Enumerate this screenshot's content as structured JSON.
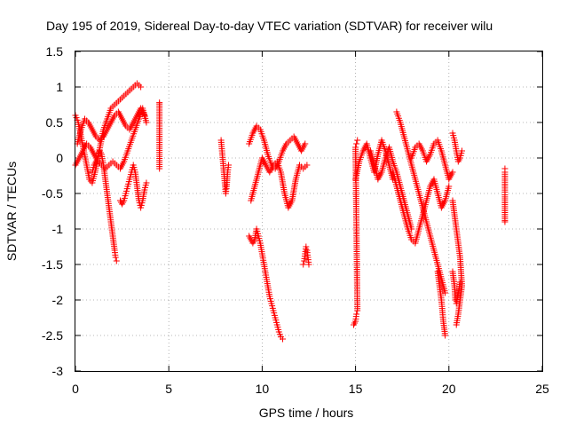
{
  "chart_data": {
    "type": "scatter",
    "title": "Day 195 of 2019, Sidereal Day-to-day VTEC variation (SDTVAR) for receiver wilu",
    "xlabel": "GPS time / hours",
    "ylabel": "SDTVAR / TECUs",
    "xlim": [
      0,
      25
    ],
    "ylim": [
      -3,
      1.5
    ],
    "xticks": [
      0,
      5,
      10,
      15,
      20,
      25
    ],
    "yticks": [
      -3,
      -2.5,
      -2,
      -1.5,
      -1,
      -0.5,
      0,
      0.5,
      1,
      1.5
    ],
    "xtick_labels": [
      "0",
      "5",
      "10",
      "15",
      "20",
      "25"
    ],
    "ytick_labels": [
      "-3",
      "-2.5",
      "-2",
      "-1.5",
      "-1",
      "-0.5",
      "0",
      "0.5",
      "1",
      "1.5"
    ],
    "grid": true,
    "marker": "+",
    "color": "#ff0000",
    "series": [
      {
        "name": "s1",
        "x": [
          0.0,
          0.15,
          0.3,
          0.45,
          0.6,
          0.75,
          0.9,
          1.05,
          1.2,
          1.35,
          1.5,
          1.7,
          1.9,
          2.1,
          2.3,
          2.5,
          2.7,
          2.9,
          3.1,
          3.3,
          3.5
        ],
        "y": [
          0.6,
          0.5,
          0.3,
          0.1,
          -0.1,
          -0.3,
          -0.35,
          -0.2,
          0.0,
          0.2,
          0.4,
          0.55,
          0.7,
          0.75,
          0.8,
          0.85,
          0.9,
          0.95,
          1.0,
          1.05,
          1.0
        ]
      },
      {
        "name": "s2",
        "x": [
          0.1,
          0.3,
          0.5,
          0.7,
          0.9,
          1.1,
          1.3,
          1.5,
          1.7,
          1.9,
          2.1,
          2.3,
          2.5,
          2.7,
          2.9,
          3.1,
          3.3,
          3.5,
          3.7
        ],
        "y": [
          0.2,
          0.4,
          0.55,
          0.5,
          0.4,
          0.3,
          0.25,
          0.3,
          0.4,
          0.5,
          0.6,
          0.65,
          0.55,
          0.45,
          0.4,
          0.5,
          0.6,
          0.7,
          0.6
        ]
      },
      {
        "name": "s3",
        "x": [
          0.0,
          0.2,
          0.4,
          0.6,
          0.8,
          1.0,
          1.2,
          1.4,
          1.6,
          1.8,
          2.0,
          2.2,
          2.4,
          2.6,
          2.8,
          3.0,
          3.2,
          3.4,
          3.6,
          3.8
        ],
        "y": [
          -0.1,
          0.0,
          0.1,
          0.2,
          0.15,
          0.05,
          -0.05,
          -0.1,
          -0.15,
          -0.1,
          -0.05,
          -0.1,
          -0.15,
          -0.05,
          0.1,
          0.25,
          0.4,
          0.55,
          0.7,
          0.5
        ]
      },
      {
        "name": "s4",
        "x": [
          0.9,
          1.0,
          1.1,
          1.2,
          1.3,
          1.4,
          1.5,
          1.6,
          1.7,
          1.8,
          1.9,
          2.0,
          2.1,
          2.15,
          2.2
        ],
        "y": [
          -0.2,
          -0.1,
          -0.05,
          0.0,
          0.1,
          0.05,
          -0.1,
          -0.3,
          -0.5,
          -0.7,
          -0.9,
          -1.1,
          -1.3,
          -1.4,
          -1.45
        ]
      },
      {
        "name": "s5",
        "x": [
          2.4,
          2.5,
          2.6,
          2.7,
          2.8,
          2.9,
          3.0,
          3.1,
          3.2,
          3.3,
          3.4,
          3.5,
          3.6,
          3.7,
          3.8
        ],
        "y": [
          -0.6,
          -0.65,
          -0.6,
          -0.5,
          -0.4,
          -0.3,
          -0.2,
          -0.1,
          -0.2,
          -0.4,
          -0.6,
          -0.7,
          -0.6,
          -0.45,
          -0.35
        ]
      },
      {
        "name": "s6",
        "x": [
          4.5,
          4.5,
          4.5,
          4.5,
          4.5,
          4.5
        ],
        "y": [
          0.78,
          0.76,
          0.45,
          0.42,
          -0.12,
          -0.15
        ]
      },
      {
        "name": "s7",
        "x": [
          7.8,
          7.85,
          7.9,
          7.95,
          8.0,
          8.05,
          8.1,
          8.15,
          8.2
        ],
        "y": [
          0.25,
          0.1,
          -0.05,
          -0.2,
          -0.35,
          -0.5,
          -0.4,
          -0.2,
          -0.1
        ]
      },
      {
        "name": "s8",
        "x": [
          9.3,
          9.5,
          9.7,
          9.9,
          10.1,
          10.3,
          10.5,
          10.7,
          10.9,
          11.1,
          11.3,
          11.5,
          11.7,
          11.9,
          12.1,
          12.3
        ],
        "y": [
          0.2,
          0.35,
          0.45,
          0.4,
          0.25,
          0.05,
          -0.1,
          -0.15,
          -0.05,
          0.1,
          0.2,
          0.25,
          0.3,
          0.2,
          0.1,
          0.2
        ]
      },
      {
        "name": "s9",
        "x": [
          9.4,
          9.6,
          9.8,
          10.0,
          10.2,
          10.4,
          10.6,
          10.8,
          11.0,
          11.2,
          11.4,
          11.6,
          11.8,
          12.0,
          12.2,
          12.4
        ],
        "y": [
          -0.6,
          -0.4,
          -0.2,
          0.0,
          -0.1,
          -0.2,
          -0.1,
          -0.05,
          -0.2,
          -0.5,
          -0.7,
          -0.6,
          -0.3,
          -0.1,
          -0.15,
          -0.1
        ]
      },
      {
        "name": "s10",
        "x": [
          9.3,
          9.4,
          9.5,
          9.6,
          9.7,
          9.8,
          9.9,
          10.0,
          10.1,
          10.2,
          10.3,
          10.4,
          10.5,
          10.6,
          10.7,
          10.8,
          10.9,
          11.0,
          11.1
        ],
        "y": [
          -1.1,
          -1.15,
          -1.2,
          -1.15,
          -1.0,
          -1.1,
          -1.2,
          -1.35,
          -1.5,
          -1.65,
          -1.8,
          -1.95,
          -2.05,
          -2.15,
          -2.25,
          -2.35,
          -2.45,
          -2.52,
          -2.55
        ]
      },
      {
        "name": "s11",
        "x": [
          12.2,
          12.25,
          12.3,
          12.35,
          12.4,
          12.45,
          12.5
        ],
        "y": [
          -1.5,
          -1.45,
          -1.35,
          -1.25,
          -1.3,
          -1.4,
          -1.5
        ]
      },
      {
        "name": "s12",
        "x": [
          14.9,
          15.0,
          15.05,
          15.1,
          15.0,
          15.05,
          15.1
        ],
        "y": [
          -2.35,
          -2.3,
          -2.2,
          -2.15,
          0.15,
          0.2,
          0.25
        ]
      },
      {
        "name": "s13",
        "x": [
          15.0,
          15.2,
          15.4,
          15.6,
          15.8,
          16.0,
          16.2,
          16.4,
          16.6,
          16.8,
          17.0
        ],
        "y": [
          -0.3,
          -0.05,
          0.1,
          0.2,
          0.0,
          -0.2,
          0.05,
          0.25,
          0.1,
          -0.1,
          -0.3
        ]
      },
      {
        "name": "s14",
        "x": [
          15.8,
          16.0,
          16.2,
          16.4,
          16.6,
          16.8,
          17.0,
          17.2,
          17.4,
          17.6,
          17.8,
          18.0
        ],
        "y": [
          0.1,
          -0.1,
          -0.3,
          -0.2,
          0.0,
          0.15,
          -0.05,
          -0.2,
          -0.4,
          -0.6,
          -0.8,
          -1.0
        ]
      },
      {
        "name": "s15",
        "x": [
          17.2,
          17.4,
          17.6,
          17.8,
          18.0,
          18.2,
          18.4,
          18.6,
          18.8,
          19.0,
          19.2,
          19.4,
          19.6,
          19.8
        ],
        "y": [
          0.65,
          0.5,
          0.3,
          0.1,
          -0.1,
          -0.3,
          -0.5,
          -0.7,
          -0.9,
          -1.1,
          -1.3,
          -1.5,
          -1.7,
          -1.9
        ]
      },
      {
        "name": "s16",
        "x": [
          17.0,
          17.2,
          17.4,
          17.6,
          17.8,
          18.0,
          18.2,
          18.4,
          18.6,
          18.8,
          19.0,
          19.2,
          19.4,
          19.6,
          19.8,
          20.0
        ],
        "y": [
          -0.2,
          -0.4,
          -0.6,
          -0.8,
          -1.0,
          -1.15,
          -1.2,
          -1.0,
          -0.8,
          -0.6,
          -0.4,
          -0.3,
          -0.5,
          -0.7,
          -0.6,
          -0.4
        ]
      },
      {
        "name": "s17",
        "x": [
          18.0,
          18.2,
          18.4,
          18.6,
          18.8,
          19.0,
          19.2,
          19.4,
          19.6,
          19.8,
          20.0,
          20.2
        ],
        "y": [
          0.0,
          0.15,
          0.2,
          0.1,
          -0.05,
          0.05,
          0.2,
          0.25,
          0.1,
          -0.1,
          -0.3,
          -0.2
        ]
      },
      {
        "name": "s18",
        "x": [
          19.4,
          19.5,
          19.6,
          19.7,
          19.8
        ],
        "y": [
          -1.6,
          -1.8,
          -2.0,
          -2.3,
          -2.5
        ]
      },
      {
        "name": "s19",
        "x": [
          20.2,
          20.3,
          20.4,
          20.5,
          20.6,
          20.7
        ],
        "y": [
          0.35,
          0.25,
          0.1,
          -0.05,
          0.0,
          0.1
        ]
      },
      {
        "name": "s20",
        "x": [
          20.2,
          20.3,
          20.4,
          20.5,
          20.6,
          20.7,
          20.6,
          20.5,
          20.4
        ],
        "y": [
          -0.6,
          -0.8,
          -1.0,
          -1.2,
          -1.4,
          -1.8,
          -2.0,
          -2.2,
          -2.35
        ]
      },
      {
        "name": "s21",
        "x": [
          20.2,
          20.3,
          20.35,
          20.4,
          20.5,
          20.6
        ],
        "y": [
          -1.6,
          -1.8,
          -2.0,
          -2.05,
          -1.9,
          -1.75
        ]
      },
      {
        "name": "s22",
        "x": [
          23.0,
          23.0,
          23.0,
          23.0,
          23.0,
          23.0
        ],
        "y": [
          -0.15,
          -0.2,
          -0.48,
          -0.52,
          -0.88,
          -0.9
        ]
      }
    ]
  }
}
